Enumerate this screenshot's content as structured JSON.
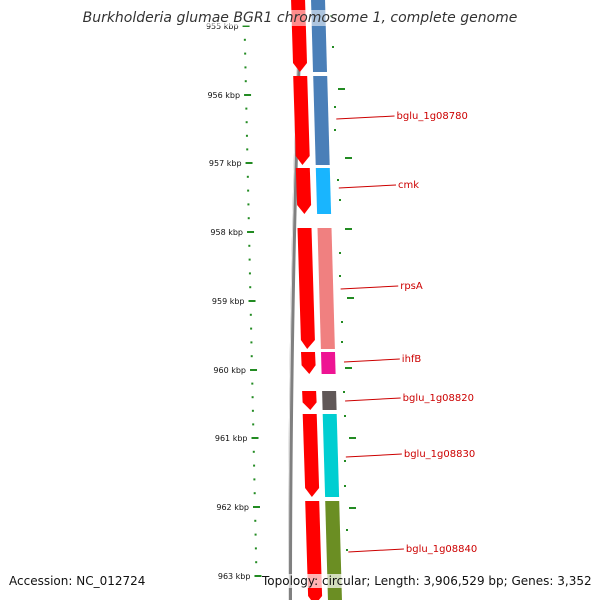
{
  "title": "Burkholderia glumae BGR1 chromosome 1, complete genome",
  "accession_text": "Accession: NC_012724",
  "topology_text": "Topology: circular; Length: 3,906,529 bp; Genes: 3,352",
  "colors": {
    "backbone": "#808080",
    "tick": "#228B22",
    "forward_arrow": "#FF0000",
    "gene_label": "#CC0000",
    "axis_label": "#111111"
  },
  "ticks": [
    {
      "label": "955 kbp"
    },
    {
      "label": "956 kbp"
    },
    {
      "label": "957 kbp"
    },
    {
      "label": "958 kbp"
    },
    {
      "label": "959 kbp"
    },
    {
      "label": "960 kbp"
    },
    {
      "label": "961 kbp"
    },
    {
      "label": "962 kbp"
    },
    {
      "label": "963 kbp"
    }
  ],
  "genes": [
    {
      "name": "",
      "color": "#4A7FB8",
      "labeled": false
    },
    {
      "name": "bglu_1g08780",
      "color": "#4A7FB8",
      "labeled": true
    },
    {
      "name": "cmk",
      "color": "#19B5FE",
      "labeled": true
    },
    {
      "name": "rpsA",
      "color": "#F08080",
      "labeled": true
    },
    {
      "name": "ihfB",
      "color": "#EE1493",
      "labeled": true
    },
    {
      "name": "bglu_1g08820",
      "color": "#605858",
      "labeled": true
    },
    {
      "name": "bglu_1g08830",
      "color": "#00CED1",
      "labeled": true
    },
    {
      "name": "bglu_1g08840",
      "color": "#6B8E23",
      "labeled": true
    }
  ]
}
